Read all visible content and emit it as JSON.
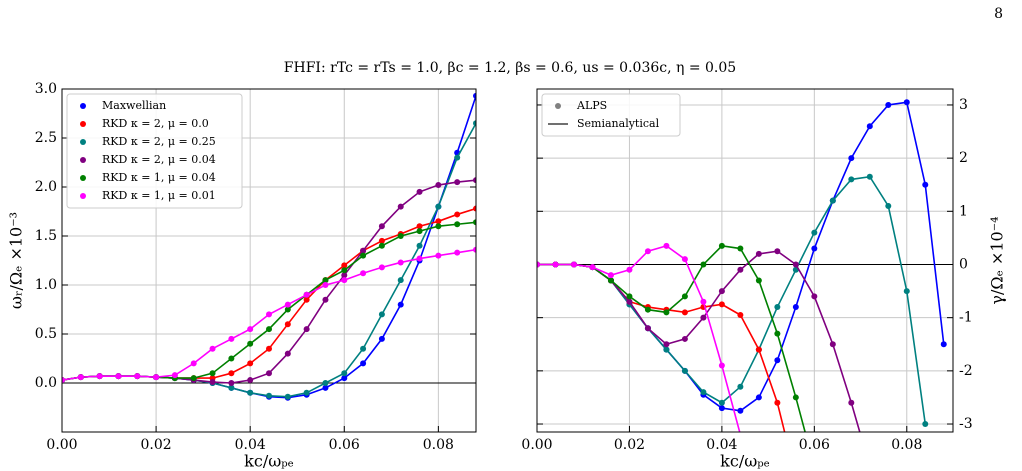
{
  "page_number": "8",
  "title": "FHFI: rTc = rTs = 1.0, βc = 1.2, βs = 0.6, us = 0.036c, η = 0.05",
  "chart_data": [
    {
      "type": "line",
      "xlabel": "kc/ωₚₑ",
      "ylabel": "ωᵣ/Ωₑ ×10⁻³",
      "y_axis_side": "left",
      "grid": true,
      "legend": "upper-left",
      "xlim": [
        0,
        0.088
      ],
      "ylim": [
        -0.5,
        3.0
      ],
      "xticks": [
        {
          "value": 0,
          "label": "0.00"
        },
        {
          "value": 0.02,
          "label": "0.02"
        },
        {
          "value": 0.04,
          "label": "0.04"
        },
        {
          "value": 0.06,
          "label": "0.06"
        },
        {
          "value": 0.08,
          "label": "0.08"
        }
      ],
      "yticks": [
        {
          "value": 0,
          "label": "0.0"
        },
        0.5,
        {
          "value": 1,
          "label": "1.0"
        },
        1.5,
        {
          "value": 2,
          "label": "2.0"
        },
        2.5,
        {
          "value": 3,
          "label": "3.0"
        }
      ],
      "x": [
        0,
        0.004,
        0.008,
        0.012,
        0.016,
        0.02,
        0.024,
        0.028,
        0.032,
        0.036,
        0.04,
        0.044,
        0.048,
        0.052,
        0.056,
        0.06,
        0.064,
        0.068,
        0.072,
        0.076,
        0.08,
        0.084,
        0.088
      ],
      "series": [
        {
          "name": "Maxwellian",
          "color": "#0000ff",
          "values": [
            0.03,
            0.06,
            0.07,
            0.07,
            0.07,
            0.06,
            0.05,
            0.03,
            0.0,
            -0.05,
            -0.1,
            -0.14,
            -0.15,
            -0.12,
            -0.05,
            0.05,
            0.2,
            0.45,
            0.8,
            1.25,
            1.8,
            2.35,
            2.93
          ]
        },
        {
          "name": "RKD κ = 2, μ = 0.0",
          "color": "#ff0000",
          "values": [
            0.03,
            0.06,
            0.07,
            0.07,
            0.07,
            0.06,
            0.05,
            0.05,
            0.05,
            0.1,
            0.2,
            0.35,
            0.6,
            0.85,
            1.05,
            1.2,
            1.35,
            1.45,
            1.52,
            1.6,
            1.65,
            1.72,
            1.78
          ]
        },
        {
          "name": "RKD κ = 2, μ = 0.25",
          "color": "#008080",
          "values": [
            0.03,
            0.06,
            0.07,
            0.07,
            0.07,
            0.06,
            0.05,
            0.03,
            0.0,
            -0.05,
            -0.1,
            -0.13,
            -0.14,
            -0.1,
            0.0,
            0.1,
            0.35,
            0.7,
            1.05,
            1.4,
            1.8,
            2.3,
            2.65
          ]
        },
        {
          "name": "RKD κ = 2, μ = 0.04",
          "color": "#800080",
          "values": [
            0.03,
            0.06,
            0.07,
            0.07,
            0.07,
            0.06,
            0.05,
            0.03,
            0.01,
            0.0,
            0.03,
            0.1,
            0.3,
            0.55,
            0.85,
            1.1,
            1.35,
            1.6,
            1.8,
            1.95,
            2.02,
            2.05,
            2.07
          ]
        },
        {
          "name": "RKD κ = 1, μ = 0.04",
          "color": "#008000",
          "values": [
            0.03,
            0.06,
            0.07,
            0.07,
            0.07,
            0.06,
            0.05,
            0.05,
            0.1,
            0.25,
            0.4,
            0.55,
            0.75,
            0.9,
            1.05,
            1.15,
            1.3,
            1.4,
            1.5,
            1.55,
            1.6,
            1.62,
            1.64
          ]
        },
        {
          "name": "RKD κ = 1, μ = 0.01",
          "color": "#ff00ff",
          "values": [
            0.03,
            0.06,
            0.07,
            0.07,
            0.07,
            0.06,
            0.08,
            0.2,
            0.35,
            0.45,
            0.55,
            0.7,
            0.8,
            0.9,
            1.0,
            1.05,
            1.12,
            1.18,
            1.23,
            1.27,
            1.3,
            1.33,
            1.36
          ]
        }
      ]
    },
    {
      "type": "line",
      "xlabel": "kc/ωₚₑ",
      "ylabel": "γ/Ωₑ ×10⁻⁴",
      "y_axis_side": "right",
      "grid": true,
      "legend": "upper-left",
      "legend_entries": [
        {
          "label": "ALPS",
          "marker": "dot",
          "color": "#808080"
        },
        {
          "label": "Semianalytical",
          "marker": "line",
          "color": "#404040"
        }
      ],
      "xlim": [
        0,
        0.09
      ],
      "ylim": [
        -3.15,
        3.3
      ],
      "xticks": [
        {
          "value": 0,
          "label": "0.00"
        },
        {
          "value": 0.02,
          "label": "0.02"
        },
        {
          "value": 0.04,
          "label": "0.04"
        },
        {
          "value": 0.06,
          "label": "0.06"
        },
        {
          "value": 0.08,
          "label": "0.08"
        }
      ],
      "yticks": [
        -3,
        -2,
        -1,
        0,
        1,
        2,
        3
      ],
      "x": [
        0,
        0.004,
        0.008,
        0.012,
        0.016,
        0.02,
        0.024,
        0.028,
        0.032,
        0.036,
        0.04,
        0.044,
        0.048,
        0.052,
        0.056,
        0.06,
        0.064,
        0.068,
        0.072,
        0.076,
        0.08,
        0.084,
        0.088
      ],
      "series": [
        {
          "color": "#0000ff",
          "values": [
            0,
            0,
            0,
            -0.05,
            -0.3,
            -0.75,
            -1.2,
            -1.6,
            -2.0,
            -2.45,
            -2.7,
            -2.75,
            -2.5,
            -1.8,
            -0.8,
            0.3,
            1.2,
            2.0,
            2.6,
            3.0,
            3.05,
            1.5,
            -1.5
          ]
        },
        {
          "color": "#008080",
          "values": [
            0,
            0,
            0,
            -0.05,
            -0.3,
            -0.75,
            -1.2,
            -1.6,
            -2.0,
            -2.4,
            -2.6,
            -2.3,
            -1.6,
            -0.8,
            -0.1,
            0.6,
            1.2,
            1.6,
            1.65,
            1.1,
            -0.5,
            -3.0,
            null
          ]
        },
        {
          "color": "#ff0000",
          "values": [
            0,
            0,
            0,
            -0.05,
            -0.3,
            -0.7,
            -0.8,
            -0.85,
            -0.9,
            -0.8,
            -0.75,
            -0.95,
            -1.6,
            -2.6,
            -4.0,
            null,
            null,
            null,
            null,
            null,
            null,
            null,
            null
          ]
        },
        {
          "color": "#800080",
          "values": [
            0,
            0,
            0,
            -0.05,
            -0.3,
            -0.7,
            -1.2,
            -1.5,
            -1.4,
            -1.0,
            -0.5,
            -0.1,
            0.2,
            0.25,
            0.0,
            -0.6,
            -1.5,
            -2.6,
            -3.8,
            null,
            null,
            null,
            null
          ]
        },
        {
          "color": "#008000",
          "values": [
            0,
            0,
            0,
            -0.05,
            -0.3,
            -0.6,
            -0.85,
            -0.9,
            -0.6,
            0.0,
            0.35,
            0.3,
            -0.3,
            -1.3,
            -2.5,
            -3.8,
            null,
            null,
            null,
            null,
            null,
            null,
            null
          ]
        },
        {
          "color": "#ff00ff",
          "values": [
            0,
            0,
            0,
            -0.05,
            -0.2,
            -0.1,
            0.25,
            0.35,
            0.1,
            -0.7,
            -1.9,
            -3.2,
            null,
            null,
            null,
            null,
            null,
            null,
            null,
            null,
            null,
            null,
            null
          ]
        }
      ]
    }
  ]
}
